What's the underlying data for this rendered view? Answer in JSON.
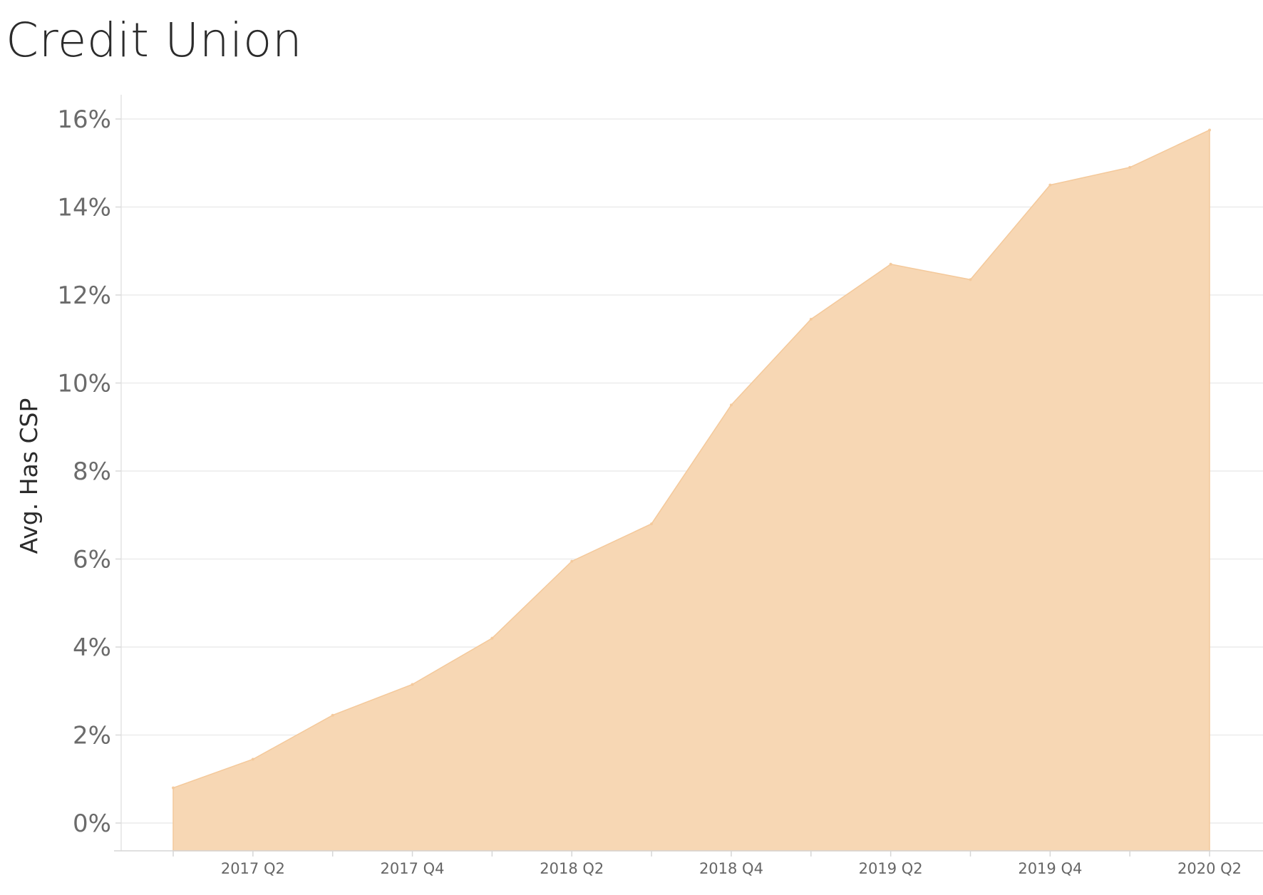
{
  "chart_data": {
    "type": "area",
    "title": "Credit Union",
    "xlabel": "",
    "ylabel": "Avg. Has CSP",
    "x": [
      "2017 Q1",
      "2017 Q2",
      "2017 Q3",
      "2017 Q4",
      "2018 Q1",
      "2018 Q2",
      "2018 Q3",
      "2018 Q4",
      "2019 Q1",
      "2019 Q2",
      "2019 Q3",
      "2019 Q4",
      "2020 Q1",
      "2020 Q2"
    ],
    "x_tick_labels": [
      "2017 Q2",
      "2017 Q4",
      "2018 Q2",
      "2018 Q4",
      "2019 Q2",
      "2019 Q4",
      "2020 Q2"
    ],
    "values": [
      0.8,
      1.45,
      2.45,
      3.15,
      4.2,
      5.95,
      6.8,
      9.5,
      11.45,
      12.7,
      12.35,
      14.5,
      14.9,
      15.75
    ],
    "y_tick_labels": [
      "0%",
      "2%",
      "4%",
      "6%",
      "8%",
      "10%",
      "12%",
      "14%",
      "16%"
    ],
    "y_ticks": [
      0,
      2,
      4,
      6,
      8,
      10,
      12,
      14,
      16
    ],
    "ylim": [
      0,
      16
    ],
    "y_unit": "%",
    "grid": true,
    "legend": "none",
    "fill_color": "#f7d7b4",
    "line_color": "#f4c99b",
    "gridline_color": "#ececec"
  }
}
